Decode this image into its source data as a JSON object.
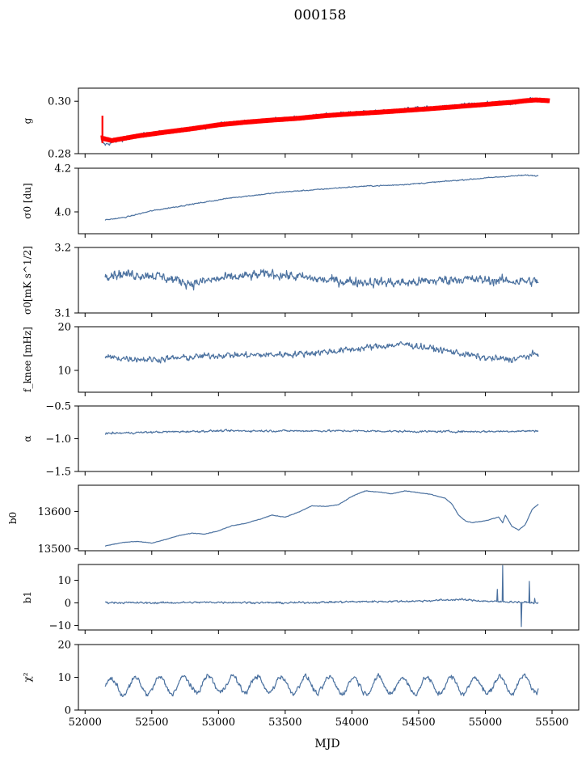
{
  "figure_title": "000158",
  "colors": {
    "series": "#4c72a0",
    "fit": "#ff0000",
    "frame": "#000000"
  },
  "chart_data": {
    "type": "line",
    "x_axis": {
      "label": "MJD",
      "lim": [
        51950,
        55700
      ],
      "ticks": [
        52000,
        52500,
        53000,
        53500,
        54000,
        54500,
        55000,
        55500
      ],
      "tick_labels": [
        "52000",
        "52500",
        "53000",
        "53500",
        "54000",
        "54500",
        "55000",
        "55500"
      ]
    },
    "panels": [
      {
        "id": "g",
        "ylabel": "g",
        "ylim": [
          0.28,
          0.305
        ],
        "yticks": [
          0.28,
          0.3
        ],
        "ytick_labels": [
          "0.28",
          "0.30"
        ],
        "series": [
          {
            "x": [
              52120,
              52150,
              52200,
              52300,
              52400,
              52500,
              52600,
              52700,
              52800,
              52900,
              53000,
              53100,
              53200,
              53300,
              53400,
              53500,
              53600,
              53700,
              53800,
              53900,
              54000,
              54100,
              54200,
              54300,
              54400,
              54500,
              54600,
              54700,
              54800,
              54900,
              55000,
              55100,
              55200,
              55300,
              55350,
              55400
            ],
            "y": [
              0.2845,
              0.2835,
              0.2842,
              0.2858,
              0.287,
              0.2878,
              0.2882,
              0.289,
              0.2895,
              0.2902,
              0.2912,
              0.2918,
              0.2922,
              0.2925,
              0.2928,
              0.2932,
              0.2938,
              0.2942,
              0.2948,
              0.2952,
              0.2955,
              0.296,
              0.2958,
              0.2962,
              0.2968,
              0.2975,
              0.2972,
              0.2978,
              0.2985,
              0.2988,
              0.299,
              0.2995,
              0.2992,
              0.3002,
              0.301,
              0.3
            ],
            "noise": 0.0012
          },
          {
            "x": [
              52120,
              52200,
              52400,
              52600,
              52800,
              53000,
              53200,
              53400,
              53600,
              53800,
              54000,
              54200,
              54400,
              54600,
              54800,
              55000,
              55200,
              55300,
              55380,
              55480
            ],
            "y": [
              0.286,
              0.285,
              0.2868,
              0.2882,
              0.2895,
              0.291,
              0.292,
              0.2928,
              0.2935,
              0.2945,
              0.2952,
              0.2958,
              0.2965,
              0.2972,
              0.298,
              0.2988,
              0.2996,
              0.3002,
              0.3005,
              0.3002
            ],
            "band": 0.0009,
            "spike_x": 52130,
            "spike_y": [
              0.284,
              0.2945
            ]
          }
        ]
      },
      {
        "id": "sigma0-du",
        "ylabel": "σ0 [du]",
        "ylim": [
          3.9,
          4.2
        ],
        "yticks": [
          4.0,
          4.2
        ],
        "ytick_labels": [
          "4.0",
          "4.2"
        ],
        "series": [
          {
            "x": [
              52150,
              52300,
              52500,
              52700,
              52900,
              53100,
              53300,
              53500,
              53700,
              53900,
              54100,
              54300,
              54500,
              54700,
              54900,
              55100,
              55300,
              55400
            ],
            "y": [
              3.963,
              3.975,
              4.005,
              4.025,
              4.045,
              4.065,
              4.078,
              4.092,
              4.1,
              4.11,
              4.118,
              4.122,
              4.13,
              4.14,
              4.15,
              4.16,
              4.168,
              4.165
            ],
            "noise": 0.004
          }
        ]
      },
      {
        "id": "sigma0-mk",
        "ylabel": "σ0[mK s^1/2]",
        "ylim": [
          3.1,
          3.2
        ],
        "yticks": [
          3.1,
          3.2
        ],
        "ytick_labels": [
          "3.1",
          "3.2"
        ],
        "series": [
          {
            "x": [
              52150,
              52500,
              52800,
              53000,
              53400,
              53800,
              54000,
              54400,
              54800,
              55000,
              55400
            ],
            "y": [
              3.16,
              3.158,
              3.145,
              3.152,
              3.16,
              3.15,
              3.148,
              3.146,
              3.152,
              3.15,
              3.148
            ],
            "noise": 0.012
          }
        ]
      },
      {
        "id": "fknee",
        "ylabel": "f_knee [mHz]",
        "ylim": [
          5,
          20
        ],
        "yticks": [
          10,
          20
        ],
        "ytick_labels": [
          "10",
          "20"
        ],
        "series": [
          {
            "x": [
              52150,
              52500,
              52800,
              53000,
              53300,
              53600,
              53900,
              54200,
              54400,
              54600,
              54800,
              55000,
              55200,
              55400
            ],
            "y": [
              13.0,
              12.5,
              13.0,
              13.5,
              13.5,
              13.8,
              14.5,
              15.5,
              16.0,
              15.0,
              14.0,
              12.8,
              12.5,
              13.8
            ],
            "noise": 1.2
          }
        ]
      },
      {
        "id": "alpha",
        "ylabel": "α",
        "ylim": [
          -1.5,
          -0.5
        ],
        "yticks": [
          -1.5,
          -1.0,
          -0.5
        ],
        "ytick_labels": [
          "−1.5",
          "−1.0",
          "−0.5"
        ],
        "series": [
          {
            "x": [
              52150,
              52500,
              53000,
              53500,
              54000,
              54500,
              55000,
              55400
            ],
            "y": [
              -0.92,
              -0.9,
              -0.88,
              -0.88,
              -0.88,
              -0.89,
              -0.89,
              -0.88
            ],
            "noise": 0.025
          }
        ]
      },
      {
        "id": "b0",
        "ylabel": "b0",
        "ylim": [
          13495,
          13670
        ],
        "yticks": [
          13500,
          13600
        ],
        "ytick_labels": [
          "13500",
          "13600"
        ],
        "series": [
          {
            "x": [
              52150,
              52300,
              52400,
              52500,
              52600,
              52700,
              52800,
              52900,
              53000,
              53100,
              53200,
              53300,
              53400,
              53500,
              53600,
              53700,
              53800,
              53900,
              54000,
              54100,
              54200,
              54300,
              54400,
              54500,
              54600,
              54700,
              54750,
              54800,
              54850,
              54900,
              55000,
              55050,
              55100,
              55130,
              55150,
              55200,
              55250,
              55300,
              55350,
              55400
            ],
            "y": [
              13508,
              13518,
              13520,
              13515,
              13525,
              13535,
              13542,
              13540,
              13548,
              13562,
              13568,
              13578,
              13590,
              13585,
              13598,
              13615,
              13613,
              13618,
              13640,
              13655,
              13652,
              13647,
              13655,
              13650,
              13645,
              13635,
              13620,
              13590,
              13575,
              13570,
              13575,
              13580,
              13585,
              13570,
              13590,
              13560,
              13550,
              13565,
              13605,
              13620
            ],
            "noise": 1.2
          }
        ]
      },
      {
        "id": "b1",
        "ylabel": "b1",
        "ylim": [
          -12,
          17
        ],
        "yticks": [
          -10,
          0,
          10
        ],
        "ytick_labels": [
          "−10",
          "0",
          "10"
        ],
        "series": [
          {
            "x": [
              52150,
              52500,
              53000,
              53500,
              54000,
              54500,
              54800,
              55000,
              55100,
              55200,
              55300,
              55400
            ],
            "y": [
              0.2,
              0.0,
              0.3,
              0.0,
              0.5,
              0.8,
              1.5,
              0.8,
              0.5,
              0.5,
              0.2,
              0.0
            ],
            "noise": 0.7,
            "bursts": [
              [
                55090,
                6.0
              ],
              [
                55130,
                16.5
              ],
              [
                55160,
                -7.0
              ],
              [
                55200,
                10.0
              ],
              [
                55240,
                8.0
              ],
              [
                55270,
                -10.5
              ],
              [
                55300,
                -11.0
              ],
              [
                55330,
                9.5
              ],
              [
                55370,
                2.0
              ]
            ]
          }
        ]
      },
      {
        "id": "chi2",
        "ylabel": "χ²",
        "ylim": [
          0,
          20
        ],
        "yticks": [
          0,
          10,
          20
        ],
        "ytick_labels": [
          "0",
          "10",
          "20"
        ],
        "series": [
          {
            "x": [
              52150,
              53000,
              54000,
              55000,
              55400
            ],
            "y": [
              7.0,
              8.0,
              7.5,
              7.5,
              8.0
            ],
            "oscillation": {
              "amplitude": 2.5,
              "period": 182
            },
            "noise": 1.3
          }
        ]
      }
    ]
  }
}
